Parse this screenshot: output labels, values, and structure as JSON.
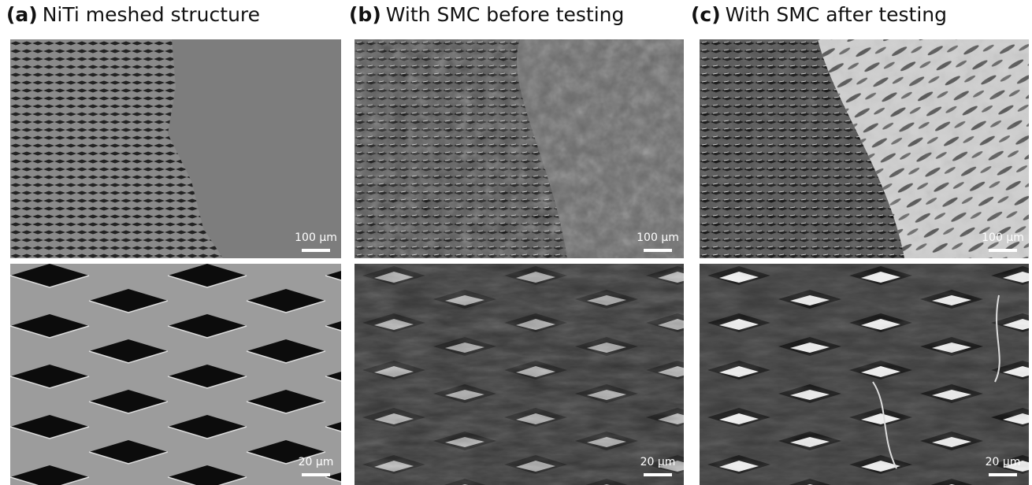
{
  "panels": [
    {
      "label": "(a)",
      "title": "NiTi meshed structure",
      "images": [
        {
          "scale": "100 µm"
        },
        {
          "scale": "20 µm"
        }
      ]
    },
    {
      "label": "(b)",
      "title": "With SMC before testing",
      "images": [
        {
          "scale": "100 µm"
        },
        {
          "scale": "20 µm"
        }
      ]
    },
    {
      "label": "(c)",
      "title": "With SMC after testing",
      "images": [
        {
          "scale": "100 µm"
        },
        {
          "scale": "20 µm"
        }
      ]
    }
  ]
}
